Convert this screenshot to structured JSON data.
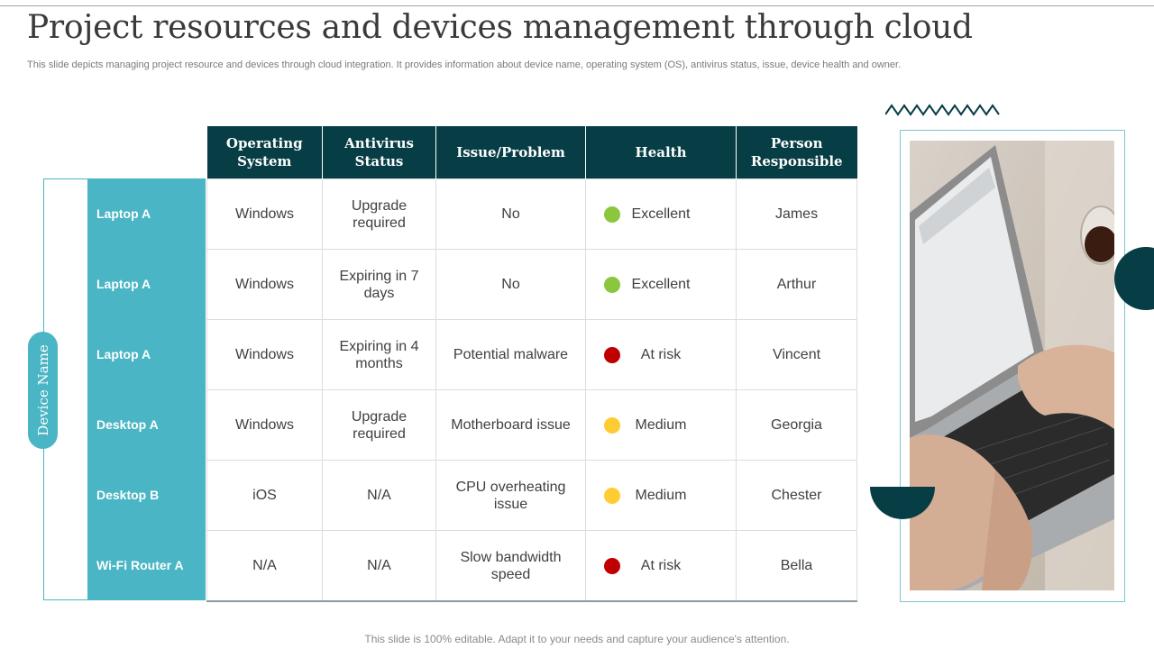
{
  "title": "Project resources and devices management through cloud",
  "subtitle": "This slide depicts managing project resource and devices through cloud integration. It provides information about device name, operating system (OS), antivirus status, issue, device health and owner.",
  "side_label": "Device Name",
  "columns": [
    "Operating System",
    "Antivirus Status",
    "Issue/Problem",
    "Health",
    "Person Responsible"
  ],
  "rows": [
    {
      "device": "Laptop A",
      "os": "Windows",
      "antivirus": "Upgrade required",
      "issue": "No",
      "health": "Excellent",
      "health_color": "#8cc63f",
      "person": "James"
    },
    {
      "device": "Laptop A",
      "os": "Windows",
      "antivirus": "Expiring in 7 days",
      "issue": "No",
      "health": "Excellent",
      "health_color": "#8cc63f",
      "person": "Arthur"
    },
    {
      "device": "Laptop A",
      "os": "Windows",
      "antivirus": "Expiring in 4 months",
      "issue": "Potential malware",
      "health": "At risk",
      "health_color": "#c00000",
      "person": "Vincent"
    },
    {
      "device": "Desktop A",
      "os": "Windows",
      "antivirus": "Upgrade required",
      "issue": "Motherboard issue",
      "health": "Medium",
      "health_color": "#ffcc33",
      "person": "Georgia"
    },
    {
      "device": "Desktop B",
      "os": "iOS",
      "antivirus": "N/A",
      "issue": "CPU overheating issue",
      "health": "Medium",
      "health_color": "#ffcc33",
      "person": "Chester"
    },
    {
      "device": "Wi-Fi Router A",
      "os": "N/A",
      "antivirus": "N/A",
      "issue": "Slow bandwidth speed",
      "health": "At risk",
      "health_color": "#c00000",
      "person": "Bella"
    }
  ],
  "footer": "This slide is 100% editable. Adapt it to your needs and capture your audience's attention.",
  "colors": {
    "dark_teal": "#073d45",
    "teal": "#4ab5c4"
  }
}
